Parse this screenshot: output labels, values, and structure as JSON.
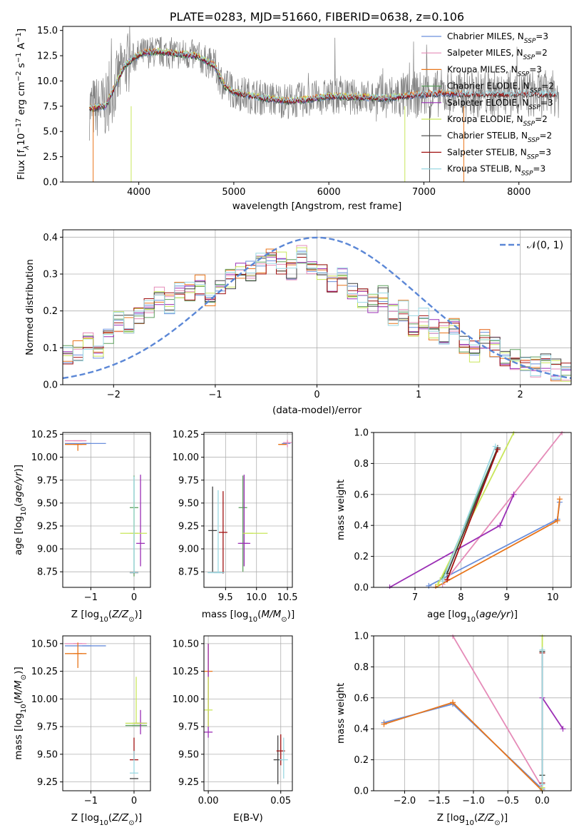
{
  "colors": {
    "Chabrier MILES": "#6a8fdc",
    "Salpeter MILES": "#e58bb8",
    "Kroupa MILES": "#e8751a",
    "Chabrier ELODIE": "#5fa05f",
    "Salpeter ELODIE": "#9b2fb5",
    "Kroupa ELODIE": "#c8e65a",
    "Chabrier STELIB": "#404040",
    "Salpeter STELIB": "#a01010",
    "Kroupa STELIB": "#9ad8e2",
    "data": "#808080",
    "normal": "#5b87d6",
    "grid": "#b0b0b0"
  },
  "chart_data": [
    {
      "id": "spectrum",
      "type": "line",
      "title": "PLATE=0283, MJD=51660, FIBERID=0638, z=0.106",
      "xlabel": "wavelength [Angstrom, rest frame]",
      "ylabel": "Flux [f_λ 10^-17 erg cm^-2 s^-1 A^-1]",
      "xlim": [
        3200,
        8550
      ],
      "ylim": [
        0,
        15.4
      ],
      "xticks": [
        "4000",
        "5000",
        "6000",
        "7000",
        "8000"
      ],
      "yticks": [
        "0.0",
        "2.5",
        "5.0",
        "7.5",
        "10.0",
        "12.5",
        "15.0"
      ],
      "grid": false,
      "legend_position": "right",
      "legend": [
        {
          "text": "Chabrier MILES, N",
          "sub": "SSP",
          "tail": "=3",
          "color": "#6a8fdc"
        },
        {
          "text": "Salpeter MILES, N",
          "sub": "SSP",
          "tail": "=2",
          "color": "#e58bb8"
        },
        {
          "text": "Kroupa MILES, N",
          "sub": "SSP",
          "tail": "=3",
          "color": "#e8751a"
        },
        {
          "text": "Chabrier ELODIE, N",
          "sub": "SSP",
          "tail": "=2",
          "color": "#5fa05f"
        },
        {
          "text": "Salpeter ELODIE, N",
          "sub": "SSP",
          "tail": "=3",
          "color": "#9b2fb5"
        },
        {
          "text": "Kroupa ELODIE, N",
          "sub": "SSP",
          "tail": "=2",
          "color": "#c8e65a"
        },
        {
          "text": "Chabrier STELIB, N",
          "sub": "SSP",
          "tail": "=2",
          "color": "#404040"
        },
        {
          "text": "Salpeter STELIB, N",
          "sub": "SSP",
          "tail": "=3",
          "color": "#a01010"
        },
        {
          "text": "Kroupa STELIB, N",
          "sub": "SSP",
          "tail": "=3",
          "color": "#9ad8e2"
        }
      ],
      "model_continuum": {
        "x": [
          3500,
          3650,
          3750,
          3850,
          3950,
          4050,
          4200,
          4400,
          4600,
          4800,
          4900,
          5000,
          5200,
          5400,
          5600,
          5800,
          6000,
          6300,
          6600,
          6900,
          7200,
          7400
        ],
        "y": [
          7.3,
          7.5,
          9.5,
          11.5,
          12.3,
          12.8,
          12.9,
          12.7,
          12.5,
          11.5,
          9.5,
          8.9,
          8.5,
          8.2,
          8.0,
          8.2,
          8.5,
          8.4,
          8.3,
          8.6,
          8.8,
          8.7
        ]
      },
      "series_model_end_wavelength": {
        "MILES": 7400,
        "ELODIE": 6800,
        "STELIB": 8400
      }
    },
    {
      "id": "residuals",
      "type": "line",
      "xlabel": "(data-model)/error",
      "ylabel": "Normed distribution",
      "xlim": [
        -2.5,
        2.5
      ],
      "ylim": [
        0,
        0.42
      ],
      "xticks": [
        "-2",
        "-1",
        "0",
        "1",
        "2"
      ],
      "yticks": [
        "0.0",
        "0.1",
        "0.2",
        "0.3",
        "0.4"
      ],
      "grid": true,
      "legend_position": "upper right",
      "legend": [
        "𝒩(0, 1)"
      ],
      "histogram_bins": [
        -2.5,
        2.5,
        50
      ],
      "histogram_center": {
        "x": [
          -2.45,
          -2.35,
          -2.25,
          -2.15,
          -2.05,
          -1.95,
          -1.85,
          -1.75,
          -1.65,
          -1.55,
          -1.45,
          -1.35,
          -1.25,
          -1.15,
          -1.05,
          -0.95,
          -0.85,
          -0.75,
          -0.65,
          -0.55,
          -0.45,
          -0.35,
          -0.25,
          -0.15,
          -0.05,
          0.05,
          0.15,
          0.25,
          0.35,
          0.45,
          0.55,
          0.65,
          0.75,
          0.85,
          0.95,
          1.05,
          1.15,
          1.25,
          1.35,
          1.45,
          1.55,
          1.65,
          1.75,
          1.85,
          1.95,
          2.05,
          2.15,
          2.25,
          2.35,
          2.45
        ],
        "y": [
          0.08,
          0.09,
          0.12,
          0.1,
          0.13,
          0.17,
          0.16,
          0.19,
          0.21,
          0.24,
          0.22,
          0.26,
          0.25,
          0.27,
          0.23,
          0.26,
          0.29,
          0.3,
          0.31,
          0.33,
          0.34,
          0.33,
          0.31,
          0.35,
          0.32,
          0.3,
          0.27,
          0.29,
          0.25,
          0.23,
          0.22,
          0.24,
          0.19,
          0.2,
          0.16,
          0.18,
          0.15,
          0.14,
          0.15,
          0.11,
          0.09,
          0.12,
          0.1,
          0.08,
          0.07,
          0.06,
          0.05,
          0.06,
          0.04,
          0.03
        ]
      },
      "normal_curve": {
        "name": "𝒩(0, 1)",
        "mean": 0,
        "sigma": 1,
        "style": "dashed"
      }
    },
    {
      "id": "age_vs_Z",
      "type": "scatter",
      "xlabel": "Z [log10(Z/Z⊙)]",
      "ylabel": "age  [log10(age/yr)]",
      "xlim": [
        -1.65,
        0.38
      ],
      "ylim": [
        8.58,
        10.27
      ],
      "xticks": [
        "-1",
        "0"
      ],
      "yticks": [
        "8.75",
        "9.00",
        "9.25",
        "9.50",
        "9.75",
        "10.00",
        "10.25"
      ],
      "grid": true,
      "points": [
        {
          "model": "Chabrier MILES",
          "x": -1.1,
          "xerr": [
            0.5,
            0.45
          ],
          "y": 10.15
        },
        {
          "model": "Salpeter MILES",
          "x": -1.3,
          "xerr": [
            0.3,
            0.2
          ],
          "y": 10.18
        },
        {
          "model": "Kroupa MILES",
          "x": -1.3,
          "xerr": [
            0.3,
            0.2
          ],
          "y": 10.14,
          "yerr": [
            0.07,
            0.0
          ]
        },
        {
          "model": "Chabrier ELODIE",
          "x": 0.0,
          "y": 9.45,
          "yerr": [
            0.75,
            0.35
          ]
        },
        {
          "model": "Salpeter ELODIE",
          "x": 0.15,
          "y": 9.06,
          "yerr": [
            0.25,
            0.75
          ]
        },
        {
          "model": "Kroupa ELODIE",
          "x": 0.0,
          "xerr": [
            0.32,
            0.3
          ],
          "y": 9.17,
          "yerr": [
            0.1,
            0.35
          ]
        },
        {
          "model": "Chabrier STELIB",
          "x": 0.0,
          "y": 8.74
        },
        {
          "model": "Salpeter STELIB",
          "x": 0.0,
          "y": 8.74
        },
        {
          "model": "Kroupa STELIB",
          "x": 0.0,
          "y": 8.74,
          "yerr": [
            0.0,
            1.05
          ]
        }
      ]
    },
    {
      "id": "age_vs_mass",
      "type": "scatter",
      "xlabel": "mass [log10(M/M⊙)]",
      "ylabel": "",
      "xlim": [
        9.15,
        10.58
      ],
      "ylim": [
        8.58,
        10.27
      ],
      "xticks": [
        "9.5",
        "10.0",
        "10.5"
      ],
      "yticks": [
        "8.75",
        "9.00",
        "9.25",
        "9.50",
        "9.75",
        "10.00",
        "10.25"
      ],
      "grid": true,
      "points": [
        {
          "model": "Chabrier MILES",
          "x": 10.48,
          "y": 10.15
        },
        {
          "model": "Salpeter MILES",
          "x": 10.5,
          "y": 10.16,
          "yerr": [
            0.05,
            0.03
          ]
        },
        {
          "model": "Kroupa MILES",
          "x": 10.42,
          "xerr": [
            0.06,
            0.06
          ],
          "y": 10.14
        },
        {
          "model": "Chabrier ELODIE",
          "x": 9.78,
          "y": 9.45,
          "yerr": [
            0.7,
            0.35
          ]
        },
        {
          "model": "Salpeter ELODIE",
          "x": 9.8,
          "xerr": [
            0.1,
            0.1
          ],
          "y": 9.06,
          "yerr": [
            0.25,
            0.75
          ]
        },
        {
          "model": "Kroupa ELODIE",
          "x": 9.88,
          "xerr": [
            0.1,
            0.3
          ],
          "y": 9.17
        },
        {
          "model": "Chabrier STELIB",
          "x": 9.29,
          "y": 9.2,
          "yerr": [
            0.45,
            0.48
          ]
        },
        {
          "model": "Salpeter STELIB",
          "x": 9.46,
          "y": 9.18,
          "yerr": [
            0.45,
            0.45
          ]
        },
        {
          "model": "Kroupa STELIB",
          "x": 9.38,
          "xerr": [
            0.17,
            0.1
          ],
          "y": 8.74,
          "yerr": [
            0.0,
            0.9
          ]
        }
      ]
    },
    {
      "id": "weight_vs_age",
      "type": "line",
      "xlabel": "age  [log10(age/yr)]",
      "ylabel": "mass weight",
      "xlim": [
        6.1,
        10.4
      ],
      "ylim": [
        0,
        1.0
      ],
      "xticks": [
        "7",
        "8",
        "9",
        "10"
      ],
      "yticks": [
        "0.0",
        "0.2",
        "0.4",
        "0.6",
        "0.8",
        "1.0"
      ],
      "grid": true,
      "series": [
        {
          "model": "Chabrier MILES",
          "x": [
            7.3,
            10.1,
            10.15
          ],
          "y": [
            0.01,
            0.44,
            0.55
          ]
        },
        {
          "model": "Salpeter MILES",
          "x": [
            7.6,
            10.2
          ],
          "y": [
            0.02,
            1.0
          ]
        },
        {
          "model": "Kroupa MILES",
          "x": [
            7.45,
            10.1,
            10.15
          ],
          "y": [
            0.0,
            0.43,
            0.57
          ]
        },
        {
          "model": "Chabrier ELODIE",
          "x": [
            7.6,
            8.8
          ],
          "y": [
            0.06,
            0.9
          ]
        },
        {
          "model": "Salpeter ELODIE",
          "x": [
            6.45,
            8.85,
            9.15
          ],
          "y": [
            0.0,
            0.4,
            0.6
          ]
        },
        {
          "model": "Kroupa ELODIE",
          "x": [
            7.5,
            9.15
          ],
          "y": [
            0.02,
            1.0
          ]
        },
        {
          "model": "Chabrier STELIB",
          "x": [
            7.7,
            8.8
          ],
          "y": [
            0.09,
            0.9
          ]
        },
        {
          "model": "Salpeter STELIB",
          "x": [
            7.7,
            8.8
          ],
          "y": [
            0.05,
            0.89
          ]
        },
        {
          "model": "Kroupa STELIB",
          "x": [
            7.6,
            8.75
          ],
          "y": [
            0.04,
            0.91
          ]
        }
      ]
    },
    {
      "id": "mass_vs_Z",
      "type": "scatter",
      "xlabel": "Z [log10(Z/Z⊙)]",
      "ylabel": "mass [log10(M/M⊙)]",
      "xlim": [
        -1.65,
        0.38
      ],
      "ylim": [
        9.17,
        10.57
      ],
      "xticks": [
        "-1",
        "0"
      ],
      "yticks": [
        "9.25",
        "9.50",
        "9.75",
        "10.00",
        "10.25",
        "10.50"
      ],
      "grid": true,
      "points": [
        {
          "model": "Chabrier MILES",
          "x": -1.1,
          "xerr": [
            0.5,
            0.45
          ],
          "y": 10.48
        },
        {
          "model": "Salpeter MILES",
          "x": -1.3,
          "xerr": [
            0.3,
            0.2
          ],
          "y": 10.5
        },
        {
          "model": "Kroupa MILES",
          "x": -1.3,
          "xerr": [
            0.3,
            0.2
          ],
          "y": 10.41,
          "yerr": [
            0.13,
            0.1
          ]
        },
        {
          "model": "Chabrier ELODIE",
          "x": 0.05,
          "xerr": [
            0.25,
            0.25
          ],
          "y": 9.76
        },
        {
          "model": "Salpeter ELODIE",
          "x": 0.15,
          "xerr": [
            0.15,
            0.15
          ],
          "y": 9.78,
          "yerr": [
            0.1,
            0.12
          ]
        },
        {
          "model": "Kroupa ELODIE",
          "x": 0.05,
          "xerr": [
            0.25,
            0.25
          ],
          "y": 9.78,
          "yerr": [
            0.0,
            0.42
          ]
        },
        {
          "model": "Chabrier STELIB",
          "x": 0.0,
          "y": 9.28
        },
        {
          "model": "Salpeter STELIB",
          "x": 0.0,
          "y": 9.45,
          "yerr": [
            0.0,
            0.2
          ]
        },
        {
          "model": "Kroupa STELIB",
          "x": 0.0,
          "y": 9.33,
          "yerr": [
            0.0,
            0.2
          ]
        }
      ]
    },
    {
      "id": "mass_vs_ebv",
      "type": "scatter",
      "xlabel": "E(B-V)",
      "ylabel": "",
      "xlim": [
        -0.003,
        0.058
      ],
      "ylim": [
        9.17,
        10.57
      ],
      "xticks": [
        "0.00",
        "0.05"
      ],
      "yticks": [
        "9.25",
        "9.50",
        "9.75",
        "10.00",
        "10.25",
        "10.50"
      ],
      "grid": true,
      "points": [
        {
          "model": "Kroupa MILES",
          "x": 0.0,
          "y": 10.25,
          "yerr": [
            0.5,
            0.25
          ]
        },
        {
          "model": "Salpeter ELODIE",
          "x": 0.0,
          "y": 9.7,
          "yerr": [
            0.05,
            0.8
          ]
        },
        {
          "model": "Kroupa ELODIE",
          "x": 0.0,
          "y": 9.9,
          "yerr": [
            0.15,
            0.3
          ]
        },
        {
          "model": "Chabrier STELIB",
          "x": 0.048,
          "y": 9.45,
          "yerr": [
            0.22,
            0.22
          ]
        },
        {
          "model": "Salpeter STELIB",
          "x": 0.05,
          "y": 9.53,
          "yerr": [
            0.13,
            0.15
          ]
        },
        {
          "model": "Kroupa STELIB",
          "x": 0.052,
          "y": 9.45,
          "yerr": [
            0.17,
            0.2
          ]
        }
      ]
    },
    {
      "id": "weight_vs_Z",
      "type": "line",
      "xlabel": "Z [log10(Z/Z⊙)]",
      "ylabel": "mass weight",
      "xlim": [
        -2.45,
        0.42
      ],
      "ylim": [
        0,
        1.0
      ],
      "xticks": [
        "-2.0",
        "-1.5",
        "-1.0",
        "-0.5",
        "0.0"
      ],
      "yticks": [
        "0.0",
        "0.2",
        "0.4",
        "0.6",
        "0.8",
        "1.0"
      ],
      "grid": true,
      "series": [
        {
          "model": "Chabrier MILES",
          "x": [
            -2.3,
            -1.3,
            0.0
          ],
          "y": [
            0.44,
            0.56,
            0.01
          ]
        },
        {
          "model": "Salpeter MILES",
          "x": [
            -1.3,
            0.0
          ],
          "y": [
            1.0,
            0.02
          ]
        },
        {
          "model": "Kroupa MILES",
          "x": [
            -2.3,
            -1.3,
            0.0
          ],
          "y": [
            0.43,
            0.57,
            0.0
          ]
        },
        {
          "model": "Chabrier ELODIE",
          "x": [
            0.0,
            0.0
          ],
          "y": [
            0.1,
            0.9
          ]
        },
        {
          "model": "Salpeter ELODIE",
          "x": [
            0.0,
            0.3
          ],
          "y": [
            0.6,
            0.4
          ]
        },
        {
          "model": "Kroupa ELODIE",
          "x": [
            0.0,
            0.0
          ],
          "y": [
            1.0,
            0.02
          ]
        },
        {
          "model": "Chabrier STELIB",
          "x": [
            0.0,
            0.0
          ],
          "y": [
            0.9,
            0.1
          ]
        },
        {
          "model": "Salpeter STELIB",
          "x": [
            0.0,
            0.0
          ],
          "y": [
            0.05,
            0.89
          ]
        },
        {
          "model": "Kroupa STELIB",
          "x": [
            0.0,
            0.0
          ],
          "y": [
            0.04,
            0.91
          ]
        }
      ]
    }
  ]
}
